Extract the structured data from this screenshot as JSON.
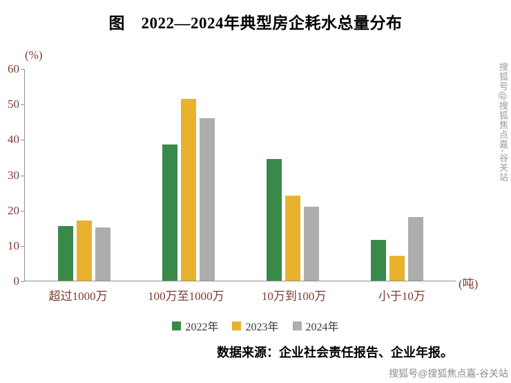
{
  "title": "图　2022—2024年典型房企耗水总量分布",
  "chart_data": {
    "type": "bar",
    "categories": [
      "超过1000万",
      "100万至1000万",
      "10万到100万",
      "小于10万"
    ],
    "series": [
      {
        "name": "2022年",
        "color": "#39894b",
        "values": [
          15.5,
          38.5,
          34.5,
          11.5
        ]
      },
      {
        "name": "2023年",
        "color": "#e8b22d",
        "values": [
          17,
          51.5,
          24,
          7
        ]
      },
      {
        "name": "2024年",
        "color": "#adadad",
        "values": [
          15,
          46,
          21,
          18
        ]
      }
    ],
    "ylabel": "(%)",
    "xunit": "(吨)",
    "ylim": [
      0,
      60
    ],
    "yticks": [
      0,
      10,
      20,
      30,
      40,
      50,
      60
    ],
    "grid": false,
    "legend_position": "bottom"
  },
  "source": "数据来源：企业社会责任报告、企业年报。",
  "watermark": {
    "vertical": "搜狐号@搜狐焦点嘉-谷关站",
    "bottom": "搜狐号@搜狐焦点嘉-谷关站"
  }
}
